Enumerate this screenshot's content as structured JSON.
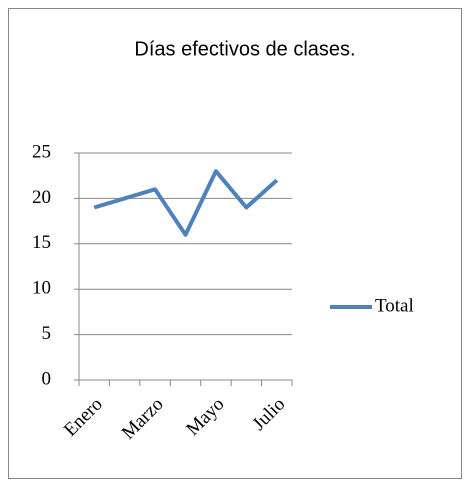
{
  "chart_data": {
    "type": "line",
    "title": "Días efectivos de clases.",
    "categories": [
      "Enero",
      null,
      "Marzo",
      null,
      "Mayo",
      null,
      "Julio"
    ],
    "series": [
      {
        "name": "Total",
        "color": "#4f81bd",
        "values": [
          19,
          20,
          21,
          16,
          23,
          19,
          22
        ]
      }
    ],
    "ylim": [
      0,
      25
    ],
    "yticks": [
      0,
      5,
      10,
      15,
      20,
      25
    ],
    "grid": true,
    "legend": "right"
  }
}
